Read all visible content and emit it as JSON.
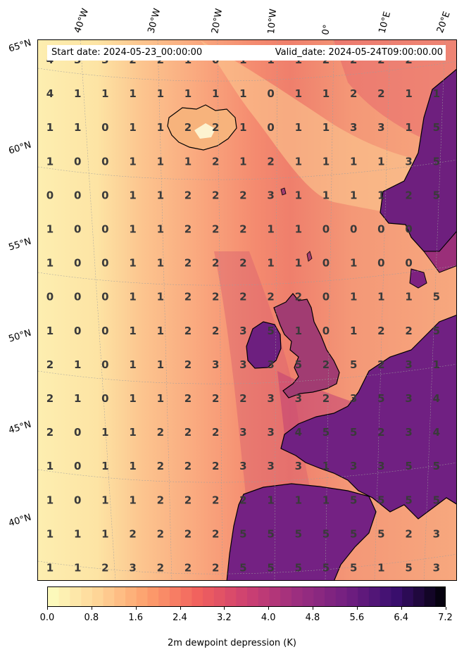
{
  "header": {
    "start_date": "Start date: 2024-05-23_00:00:00",
    "valid_date": "Valid_date: 2024-05-24T09:00:00.00"
  },
  "axes": {
    "lon_labels": [
      "40°W",
      "30°W",
      "20°W",
      "10°W",
      "0°",
      "10°E",
      "20°E"
    ],
    "lat_labels": [
      "65°N",
      "60°N",
      "55°N",
      "50°N",
      "45°N",
      "40°N"
    ]
  },
  "colorbar": {
    "title": "2m dewpoint depression (K)",
    "colormap": "magma_r",
    "range": [
      0.0,
      7.2
    ],
    "tick_labels": [
      "0.0",
      "0.8",
      "1.6",
      "2.4",
      "3.2",
      "4.0",
      "4.8",
      "5.6",
      "6.4",
      "7.2"
    ],
    "tick_values": [
      0.0,
      0.8,
      1.6,
      2.4,
      3.2,
      4.0,
      4.8,
      5.6,
      6.4,
      7.2
    ],
    "levels": 36
  },
  "colors": {
    "land_coast": "#000000",
    "grid_line": "#9e9e9e",
    "label_text": "#3a3a3a"
  },
  "grid_values": [
    [
      "4",
      "3",
      "3",
      "2",
      "2",
      "1",
      "0",
      "1",
      "1",
      "1",
      "2",
      "2",
      "2",
      "2",
      ""
    ],
    [
      "4",
      "1",
      "1",
      "1",
      "1",
      "1",
      "1",
      "1",
      "0",
      "1",
      "1",
      "2",
      "2",
      "1",
      "1"
    ],
    [
      "1",
      "1",
      "0",
      "1",
      "1",
      "2",
      "2",
      "1",
      "0",
      "1",
      "1",
      "3",
      "3",
      "1",
      "5"
    ],
    [
      "1",
      "0",
      "0",
      "1",
      "1",
      "1",
      "2",
      "1",
      "2",
      "1",
      "1",
      "1",
      "1",
      "3",
      "5"
    ],
    [
      "0",
      "0",
      "0",
      "1",
      "1",
      "2",
      "2",
      "2",
      "3",
      "1",
      "1",
      "1",
      "1",
      "2",
      "5"
    ],
    [
      "1",
      "0",
      "0",
      "1",
      "1",
      "2",
      "2",
      "2",
      "1",
      "1",
      "0",
      "0",
      "0",
      "0",
      ""
    ],
    [
      "1",
      "0",
      "0",
      "1",
      "1",
      "2",
      "2",
      "2",
      "1",
      "1",
      "0",
      "1",
      "0",
      "0",
      ""
    ],
    [
      "0",
      "0",
      "0",
      "1",
      "1",
      "2",
      "2",
      "2",
      "2",
      "2",
      "0",
      "1",
      "1",
      "1",
      "5"
    ],
    [
      "1",
      "0",
      "0",
      "1",
      "1",
      "2",
      "2",
      "3",
      "5",
      "1",
      "0",
      "1",
      "2",
      "2",
      "5"
    ],
    [
      "2",
      "1",
      "0",
      "1",
      "1",
      "2",
      "3",
      "3",
      "3",
      "5",
      "2",
      "5",
      "2",
      "3",
      "1"
    ],
    [
      "2",
      "1",
      "0",
      "1",
      "1",
      "2",
      "2",
      "2",
      "3",
      "3",
      "2",
      "3",
      "5",
      "3",
      "4"
    ],
    [
      "2",
      "0",
      "1",
      "1",
      "2",
      "2",
      "2",
      "3",
      "3",
      "4",
      "5",
      "5",
      "2",
      "3",
      "4"
    ],
    [
      "1",
      "0",
      "1",
      "1",
      "2",
      "2",
      "2",
      "3",
      "3",
      "3",
      "1",
      "3",
      "3",
      "5",
      "5"
    ],
    [
      "1",
      "0",
      "1",
      "1",
      "2",
      "2",
      "2",
      "2",
      "1",
      "1",
      "1",
      "5",
      "5",
      "5",
      "5"
    ],
    [
      "1",
      "1",
      "1",
      "2",
      "2",
      "2",
      "2",
      "5",
      "5",
      "5",
      "5",
      "5",
      "5",
      "2",
      "3"
    ],
    [
      "1",
      "1",
      "2",
      "3",
      "2",
      "2",
      "2",
      "5",
      "5",
      "5",
      "5",
      "5",
      "1",
      "5",
      "3"
    ]
  ]
}
